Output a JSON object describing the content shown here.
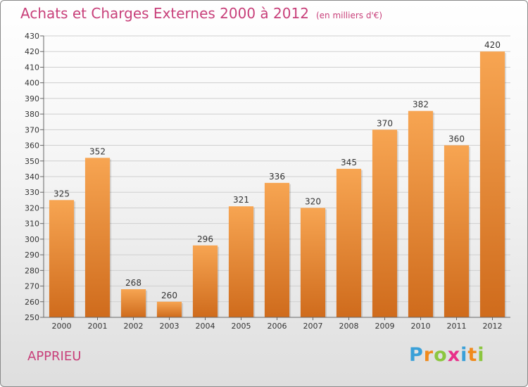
{
  "header": {
    "title": "Achats et Charges Externes 2000 à 2012",
    "unit": "(en milliers d'€)"
  },
  "commune": "APPRIEU",
  "logo": {
    "text": "Proxiti",
    "letters": [
      {
        "ch": "P",
        "color": "#3aa0d8"
      },
      {
        "ch": "r",
        "color": "#f08a1c"
      },
      {
        "ch": "o",
        "color": "#8cc63f"
      },
      {
        "ch": "x",
        "color": "#e8308a"
      },
      {
        "ch": "i",
        "color": "#3aa0d8"
      },
      {
        "ch": "t",
        "color": "#f08a1c"
      },
      {
        "ch": "i",
        "color": "#8cc63f"
      }
    ]
  },
  "chart_data": {
    "type": "bar",
    "title": "Achats et Charges Externes 2000 à 2012",
    "categories": [
      "2000",
      "2001",
      "2002",
      "2003",
      "2004",
      "2005",
      "2006",
      "2007",
      "2008",
      "2009",
      "2010",
      "2011",
      "2012"
    ],
    "values": [
      325,
      352,
      268,
      260,
      296,
      321,
      336,
      320,
      345,
      370,
      382,
      360,
      420
    ],
    "ylim": [
      250,
      430
    ],
    "ytick_step": 10,
    "grid": true,
    "bar_color_top": "#f7a552",
    "bar_color_bottom": "#cf6b1c",
    "title_color": "#c8407a"
  }
}
